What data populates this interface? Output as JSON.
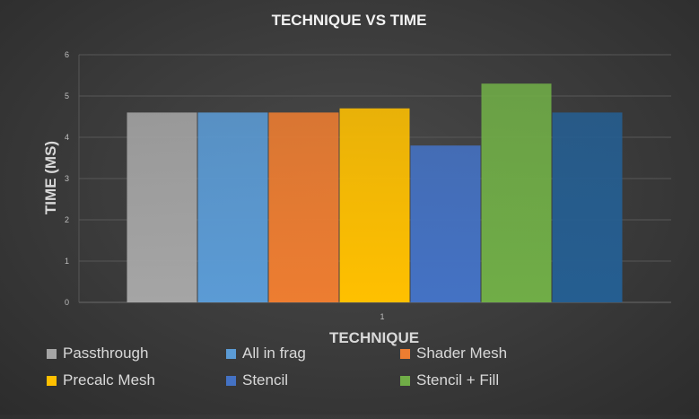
{
  "chart_data": {
    "type": "bar",
    "title": "TECHNIQUE VS TIME",
    "xlabel": "TECHNIQUE",
    "ylabel": "TIME (MS)",
    "categories": [
      "1"
    ],
    "ylim": [
      0,
      6
    ],
    "yticks": [
      0,
      1,
      2,
      3,
      4,
      5,
      6
    ],
    "grid": true,
    "legend_position": "bottom",
    "series": [
      {
        "name": "Passthrough",
        "values": [
          4.6
        ],
        "color": "#a5a5a5"
      },
      {
        "name": "All in frag",
        "values": [
          4.6
        ],
        "color": "#5b9bd5"
      },
      {
        "name": "Shader Mesh",
        "values": [
          4.6
        ],
        "color": "#ed7d31"
      },
      {
        "name": "Precalc Mesh",
        "values": [
          4.7
        ],
        "color": "#ffc000"
      },
      {
        "name": "Stencil",
        "values": [
          3.8
        ],
        "color": "#4472c4"
      },
      {
        "name": "Stencil + Fill",
        "values": [
          5.3
        ],
        "color": "#70ad47"
      },
      {
        "name": "",
        "values": [
          4.6
        ],
        "color": "#255e91"
      }
    ]
  }
}
